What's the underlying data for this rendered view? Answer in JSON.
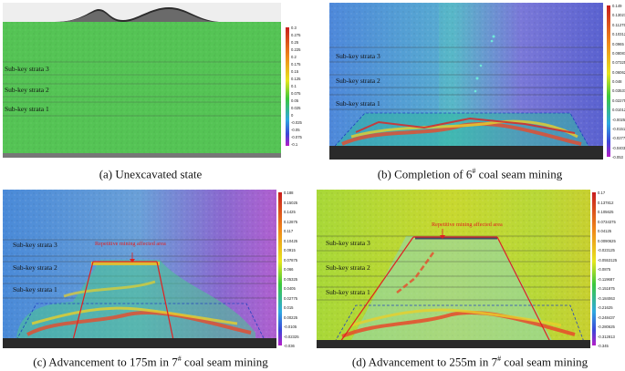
{
  "panels": [
    {
      "id": "a",
      "caption_prefix": "(a) Unexcavated state",
      "caption_sup": "",
      "caption_suffix": "",
      "strata": [
        "Sub-key strata 3",
        "Sub-key strata 2",
        "Sub-key strata 1"
      ],
      "annotation": "",
      "colorbar_ticks": [
        "0.3",
        "0.275",
        "0.25",
        "0.225",
        "0.2",
        "0.175",
        "0.15",
        "0.125",
        "0.1",
        "0.075",
        "0.05",
        "0.025",
        "0",
        "-0.025",
        "-0.05",
        "-0.075",
        "-0.1"
      ]
    },
    {
      "id": "b",
      "caption_prefix": "(b) Completion of 6",
      "caption_sup": "#",
      "caption_suffix": " coal seam mining",
      "strata": [
        "Sub-key strata 3",
        "Sub-key strata 2",
        "Sub-key strata 1"
      ],
      "annotation": "",
      "colorbar_ticks": [
        "0.149",
        "0.130275",
        "0.11275",
        "0.103125",
        "0.0965",
        "0.080875",
        "0.07325",
        "0.060625",
        "0.048",
        "0.035375",
        "0.02275",
        "0.010125",
        "-0.0025",
        "-0.015125",
        "-0.02775",
        "-0.040375",
        "-0.053"
      ]
    },
    {
      "id": "c",
      "caption_prefix": "(c) Advancement to 175m in 7",
      "caption_sup": "#",
      "caption_suffix": " coal seam mining",
      "strata": [
        "Sub-key strata 3",
        "Sub-key strata 2",
        "Sub-key strata 1"
      ],
      "annotation": "Repetitive mining affected area",
      "colorbar_ticks": [
        "0.188",
        "0.15025",
        "0.1425",
        "0.12875",
        "0.117",
        "0.10425",
        "0.0915",
        "0.07875",
        "0.066",
        "0.05325",
        "0.0405",
        "0.02775",
        "0.015",
        "0.00225",
        "-0.0105",
        "-0.02325",
        "-0.036"
      ]
    },
    {
      "id": "d",
      "caption_prefix": "(d) Advancement to 255m in 7",
      "caption_sup": "#",
      "caption_suffix": " coal seam mining",
      "strata": [
        "Sub-key strata 3",
        "Sub-key strata 2",
        "Sub-key strata 1"
      ],
      "annotation": "Repetitive mining affected area",
      "colorbar_ticks": [
        "0.17",
        "0.137812",
        "0.105625",
        "0.0734375",
        "0.04125",
        "0.0090625",
        "-0.023125",
        "-0.0553125",
        "-0.0875",
        "-0.119687",
        "-0.151875",
        "-0.184063",
        "-0.21625",
        "-0.248437",
        "-0.280625",
        "-0.312813",
        "-0.345"
      ]
    }
  ]
}
